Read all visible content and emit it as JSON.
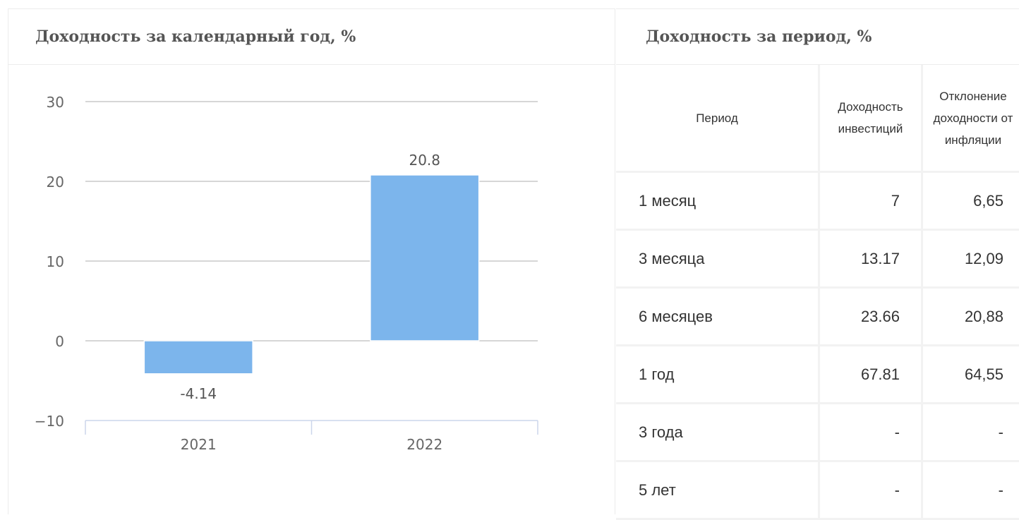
{
  "left_panel": {
    "title": "Доходность за календарный год, %"
  },
  "right_panel": {
    "title": "Доходность за период, %"
  },
  "chart_data": {
    "type": "bar",
    "categories": [
      "2021",
      "2022"
    ],
    "values": [
      -4.14,
      20.8
    ],
    "data_labels": [
      "-4.14",
      "20.8"
    ],
    "title": "Доходность за календарный год, %",
    "xlabel": "",
    "ylabel": "",
    "ylim": [
      -10,
      30
    ],
    "yticks": [
      -10,
      0,
      10,
      20,
      30
    ],
    "ytick_labels": [
      "−10",
      "0",
      "10",
      "20",
      "30"
    ],
    "grid": true,
    "bar_color": "#7cb5ec",
    "grid_color": "#c8c8c8",
    "axis_color": "#ccd6eb"
  },
  "table": {
    "headers": [
      "Период",
      "Доходность инвестиций",
      "Отклонение доходности от инфляции"
    ],
    "rows": [
      [
        "1 месяц",
        "7",
        "6,65"
      ],
      [
        "3 месяца",
        "13.17",
        "12,09"
      ],
      [
        "6 месяцев",
        "23.66",
        "20,88"
      ],
      [
        "1 год",
        "67.81",
        "64,55"
      ],
      [
        "3 года",
        "-",
        "-"
      ],
      [
        "5 лет",
        "-",
        "-"
      ]
    ]
  }
}
